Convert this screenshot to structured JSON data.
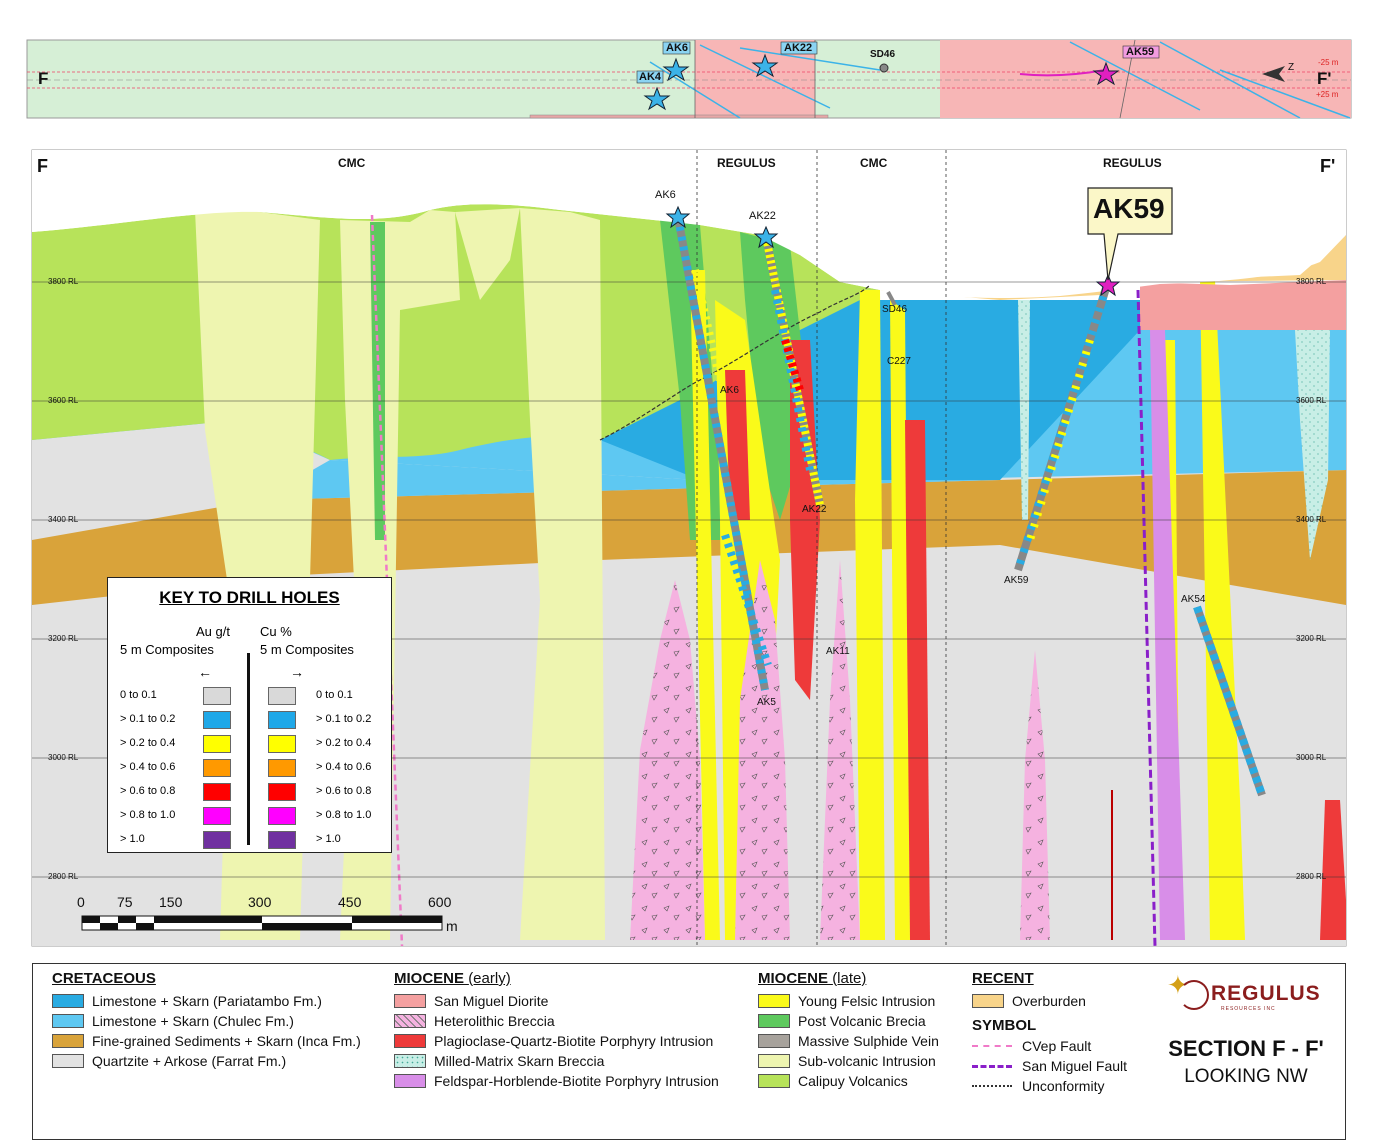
{
  "plan_view": {
    "left_label": "F",
    "right_label": "F'",
    "north_label": "Z",
    "minus_label": "-25 m",
    "plus_label": "+25 m",
    "holes": [
      {
        "id": "AK6"
      },
      {
        "id": "AK22"
      },
      {
        "id": "SD46"
      },
      {
        "id": "AK59"
      },
      {
        "id": "AK4"
      }
    ]
  },
  "section": {
    "left_label": "F",
    "right_label": "F'",
    "zones": [
      "CMC",
      "REGULUS",
      "CMC",
      "REGULUS"
    ],
    "elevations": [
      "3800 RL",
      "3600 RL",
      "3400 RL",
      "3200 RL",
      "3000 RL",
      "2800 RL"
    ],
    "callout": "AK59",
    "hole_labels": {
      "ak6_top": "AK6",
      "ak22_top": "AK22",
      "sd46": "SD46",
      "c227": "C227",
      "ak6_bottom": "AK6",
      "ak22_bottom": "AK22",
      "ak59_bottom": "AK59",
      "ak54": "AK54",
      "ak11": "AK11",
      "ak5": "AK5"
    },
    "scale": {
      "ticks": [
        "0",
        "75",
        "150",
        "300",
        "450",
        "600"
      ],
      "unit": "m"
    }
  },
  "key": {
    "title": "KEY TO DRILL HOLES",
    "left_header_1": "Au g/t",
    "left_header_2": "5 m Composites",
    "right_header_1": "Cu %",
    "right_header_2": "5 m Composites",
    "rows": [
      {
        "label": "0 to 0.1",
        "color": "#d9d9d9"
      },
      {
        "label": "> 0.1 to 0.2",
        "color": "#1fa8e8"
      },
      {
        "label": "> 0.2 to 0.4",
        "color": "#ffff00"
      },
      {
        "label": "> 0.4 to 0.6",
        "color": "#ff9900"
      },
      {
        "label": "> 0.6 to 0.8",
        "color": "#ff0000"
      },
      {
        "label": "> 0.8 to 1.0",
        "color": "#ff00ff"
      },
      {
        "label": "> 1.0",
        "color": "#7030a0"
      }
    ]
  },
  "legend": {
    "cretaceous": {
      "title": "CRETACEOUS",
      "items": [
        {
          "label": "Limestone + Skarn (Pariatambo Fm.)",
          "color": "#29abe2"
        },
        {
          "label": "Limestone + Skarn (Chulec Fm.)",
          "color": "#5ec8f2"
        },
        {
          "label": "Fine-grained Sediments + Skarn (Inca Fm.)",
          "color": "#d9a33a"
        },
        {
          "label": "Quartzite + Arkose (Farrat Fm.)",
          "color": "#e2e2e2"
        }
      ]
    },
    "miocene_early": {
      "title": "MIOCENE",
      "sub": "(early)",
      "items": [
        {
          "label": "San Miguel Diorite",
          "color": "#f4a0a0"
        },
        {
          "label": "Heterolithic Breccia",
          "color": "#f5b2e0"
        },
        {
          "label": "Plagioclase-Quartz-Biotite Porphyry Intrusion",
          "color": "#ee3a3a"
        },
        {
          "label": "Milled-Matrix Skarn Breccia",
          "color": "#c8eee6"
        },
        {
          "label": "Feldspar-Horblende-Biotite Porphyry Intrusion",
          "color": "#d88ee8"
        }
      ]
    },
    "miocene_late": {
      "title": "MIOCENE",
      "sub": "(late)",
      "items": [
        {
          "label": "Young Felsic Intrusion",
          "color": "#fafa1a"
        },
        {
          "label": "Post Volcanic Brecia",
          "color": "#5ec95e"
        },
        {
          "label": "Massive Sulphide Vein",
          "color": "#a7a29c"
        },
        {
          "label": "Sub-volcanic Intrusion",
          "color": "#eef5b0"
        },
        {
          "label": "Calipuy Volcanics",
          "color": "#b7e35a"
        }
      ]
    },
    "recent": {
      "title": "RECENT",
      "items": [
        {
          "label": "Overburden",
          "color": "#f8d48a"
        }
      ]
    },
    "symbol": {
      "title": "SYMBOL",
      "items": [
        {
          "label": "CVep Fault",
          "color": "#f07ac8"
        },
        {
          "label": "San Miguel Fault",
          "color": "#8a1fc9"
        },
        {
          "label": "Unconformity",
          "color": "#333333"
        }
      ]
    },
    "logo": {
      "name": "REGULUS",
      "tagline": "RESOURCES INC"
    },
    "section_title": "SECTION F - F'",
    "section_sub": "LOOKING NW"
  }
}
